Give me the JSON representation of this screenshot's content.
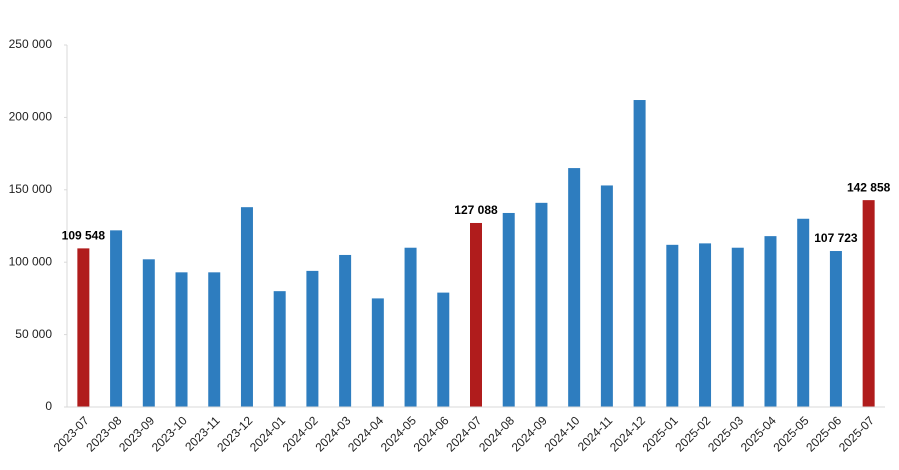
{
  "chart_data": {
    "type": "bar",
    "categories": [
      "2023-07",
      "2023-08",
      "2023-09",
      "2023-10",
      "2023-11",
      "2023-12",
      "2024-01",
      "2024-02",
      "2024-03",
      "2024-04",
      "2024-05",
      "2024-06",
      "2024-07",
      "2024-08",
      "2024-09",
      "2024-10",
      "2024-11",
      "2024-12",
      "2025-01",
      "2025-02",
      "2025-03",
      "2025-04",
      "2025-05",
      "2025-06",
      "2025-07"
    ],
    "values": [
      109548,
      122000,
      102000,
      93000,
      93000,
      138000,
      80000,
      94000,
      105000,
      75000,
      110000,
      79000,
      127088,
      134000,
      141000,
      165000,
      153000,
      212000,
      112000,
      113000,
      110000,
      118000,
      130000,
      107723,
      142858
    ],
    "value_labels": [
      "109 548",
      null,
      null,
      null,
      null,
      null,
      null,
      null,
      null,
      null,
      null,
      null,
      "127 088",
      null,
      null,
      null,
      null,
      null,
      null,
      null,
      null,
      null,
      null,
      "107 723",
      "142 858"
    ],
    "colors": [
      "#b01c1c",
      "#2e7dbf",
      "#2e7dbf",
      "#2e7dbf",
      "#2e7dbf",
      "#2e7dbf",
      "#2e7dbf",
      "#2e7dbf",
      "#2e7dbf",
      "#2e7dbf",
      "#2e7dbf",
      "#2e7dbf",
      "#b01c1c",
      "#2e7dbf",
      "#2e7dbf",
      "#2e7dbf",
      "#2e7dbf",
      "#2e7dbf",
      "#2e7dbf",
      "#2e7dbf",
      "#2e7dbf",
      "#2e7dbf",
      "#2e7dbf",
      "#2e7dbf",
      "#b01c1c"
    ],
    "ylim": [
      0,
      250000
    ],
    "yticks": [
      0,
      {
        "value": 50000,
        "label": "50 000"
      },
      {
        "value": 100000,
        "label": "100 000"
      },
      {
        "value": 150000,
        "label": "150 000"
      },
      {
        "value": 200000,
        "label": "200 000"
      },
      {
        "value": 250000,
        "label": "250 000"
      }
    ],
    "grid": false
  }
}
